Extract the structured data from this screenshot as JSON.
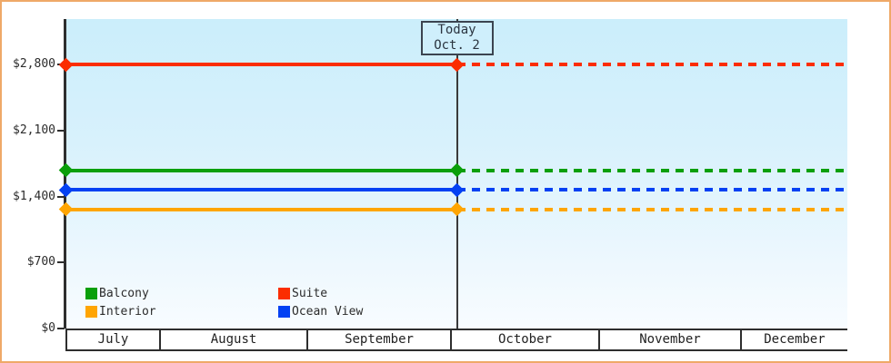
{
  "chart_data": {
    "type": "line",
    "title": "",
    "x_axis": {
      "months": [
        "July",
        "August",
        "September",
        "October",
        "November",
        "December"
      ]
    },
    "y_axis": {
      "tick_labels": [
        "$0",
        "$700",
        "$1,400",
        "$2,100",
        "$2,800"
      ],
      "tick_values": [
        0,
        700,
        1400,
        2100,
        2800
      ],
      "ylim": [
        0,
        3283
      ],
      "grid": false
    },
    "today_marker": {
      "line1": "Today",
      "line2": "Oct. 2",
      "x_fraction": 0.5
    },
    "series": [
      {
        "name": "Balcony",
        "color": "#0a9f0a",
        "value": 1680,
        "style_before_today": "solid",
        "style_after_today": "dashed"
      },
      {
        "name": "Suite",
        "color": "#fb2d00",
        "value": 2800,
        "style_before_today": "solid",
        "style_after_today": "dashed"
      },
      {
        "name": "Interior",
        "color": "#ffa502",
        "value": 1265,
        "style_before_today": "solid",
        "style_after_today": "dashed"
      },
      {
        "name": "Ocean View",
        "color": "#0341f3",
        "value": 1470,
        "style_before_today": "solid",
        "style_after_today": "dashed"
      }
    ],
    "legend": {
      "position": "bottom-left-inside",
      "order": [
        "Balcony",
        "Suite",
        "Interior",
        "Ocean View"
      ]
    },
    "layout_hints": {
      "month_widths_pct": [
        11.98,
        18.84,
        18.37,
        18.95,
        18.14,
        13.72
      ]
    },
    "colors": {
      "frame_border": "#efa968",
      "axis": "#2e2e2e",
      "plot_bg_top": "#cbeefb",
      "plot_bg_bottom": "#f8fcff",
      "today_line": "#3a3a3a"
    }
  }
}
